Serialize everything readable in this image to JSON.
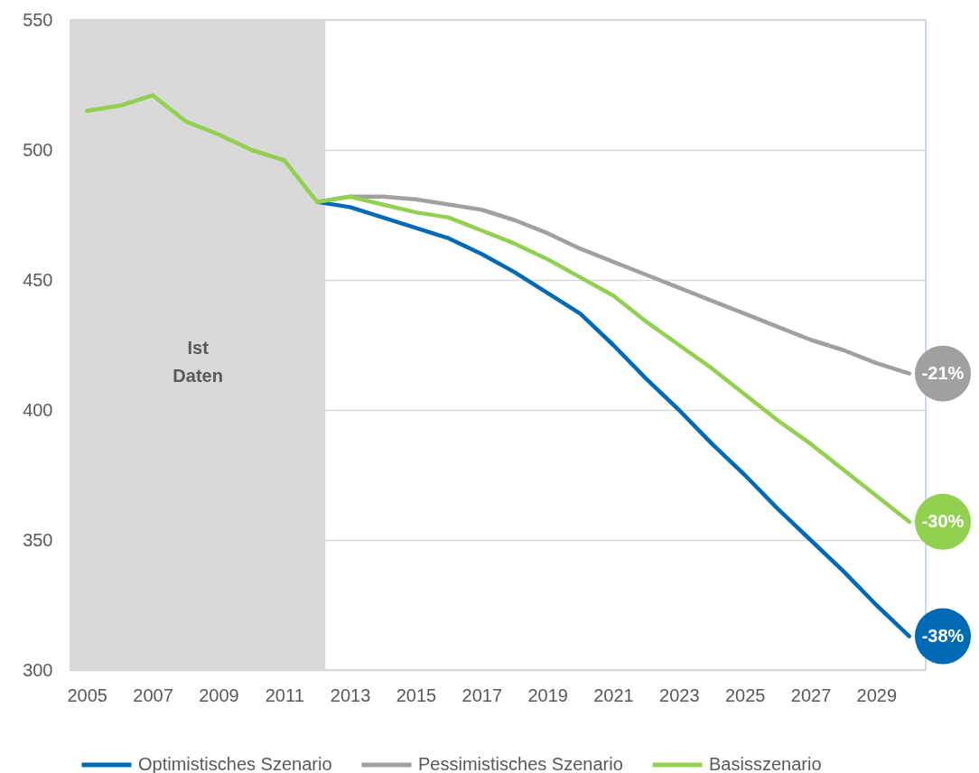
{
  "chart_data": {
    "type": "line",
    "x": [
      2005,
      2006,
      2007,
      2008,
      2009,
      2010,
      2011,
      2012,
      2013,
      2014,
      2015,
      2016,
      2017,
      2018,
      2019,
      2020,
      2021,
      2022,
      2023,
      2024,
      2025,
      2026,
      2027,
      2028,
      2029,
      2030
    ],
    "xlim": [
      2004.5,
      2030.5
    ],
    "xticks": [
      2005,
      2007,
      2009,
      2011,
      2013,
      2015,
      2017,
      2019,
      2021,
      2023,
      2025,
      2027,
      2029
    ],
    "ylim": [
      300,
      550
    ],
    "yticks": [
      300,
      350,
      400,
      450,
      500,
      550
    ],
    "grid": "y",
    "legend": "bottom",
    "bands": [
      {
        "axis": "x",
        "from": 2004.5,
        "to": 2012.25,
        "label": "Ist Daten",
        "color": "#d9d9d9"
      }
    ],
    "series": [
      {
        "name": "Optimistisches Szenario",
        "color": "#006ab4",
        "values": [
          null,
          null,
          null,
          null,
          null,
          null,
          null,
          480,
          478,
          474,
          470,
          466,
          460,
          453,
          445,
          437,
          425,
          412,
          400,
          387,
          375,
          362,
          350,
          338,
          325,
          313
        ]
      },
      {
        "name": "Pessimistisches Szenario",
        "color": "#a0a0a0",
        "values": [
          null,
          null,
          null,
          null,
          null,
          null,
          null,
          480,
          482,
          482,
          481,
          479,
          477,
          473,
          468,
          462,
          457,
          452,
          447,
          442,
          437,
          432,
          427,
          423,
          418,
          414
        ]
      },
      {
        "name": "Basisszenario",
        "color": "#92d050",
        "values": [
          515,
          517,
          521,
          511,
          506,
          500,
          496,
          480,
          482,
          479,
          476,
          474,
          469,
          464,
          458,
          451,
          444,
          434,
          425,
          416,
          406,
          396,
          387,
          377,
          367,
          357
        ]
      }
    ],
    "annotations": [
      "-21%",
      "-30%",
      "-38%"
    ]
  }
}
